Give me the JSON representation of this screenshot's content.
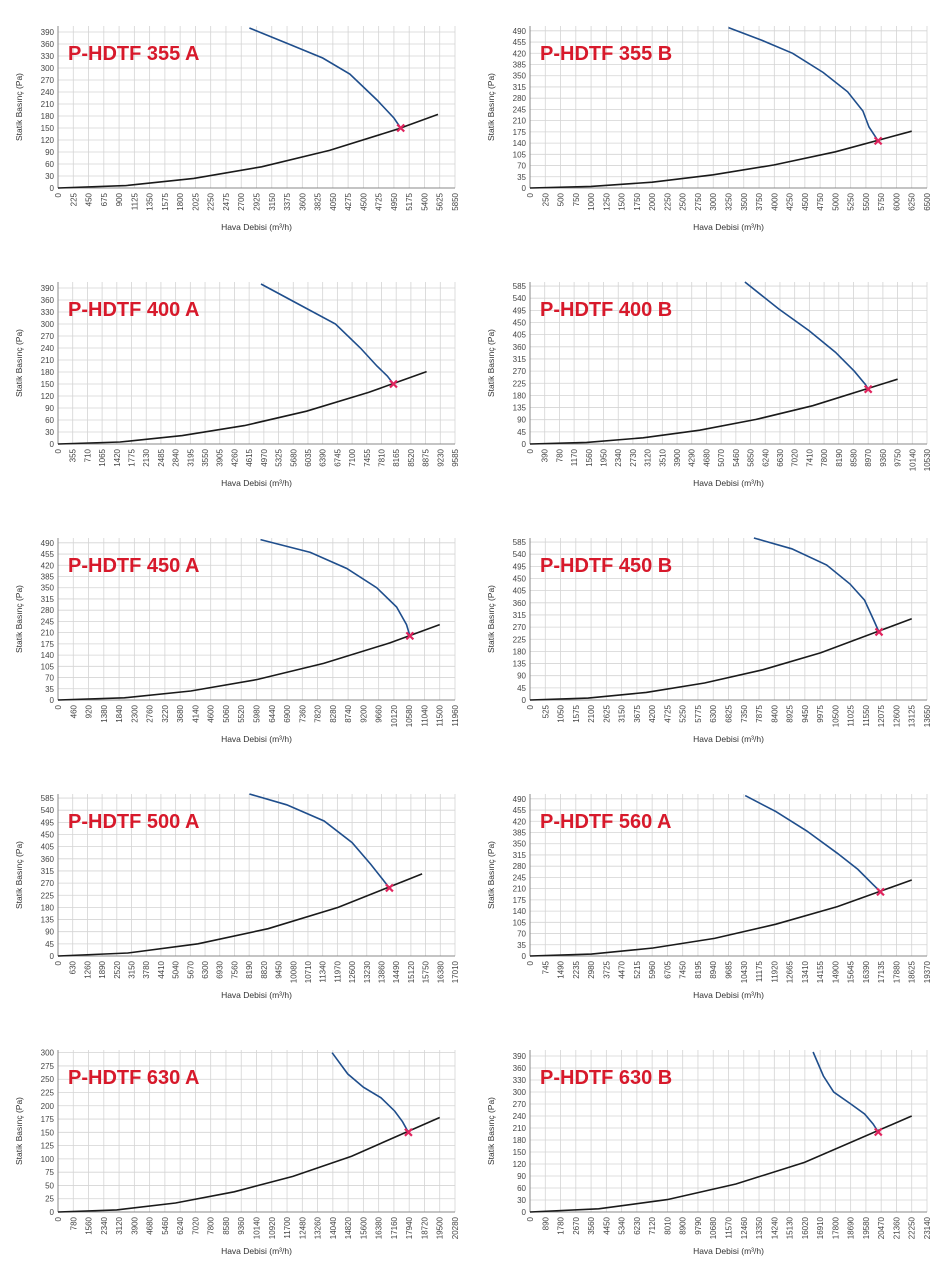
{
  "chart_data": [
    {
      "type": "line",
      "title": "P-HDTF 355 A",
      "xlabel": "Hava Debisi (m³/h)",
      "ylabel": "Statik Basınç (Pa)",
      "grid": true,
      "xlim": [
        0,
        5850
      ],
      "ylim": [
        0,
        405
      ],
      "xticks": [
        0,
        225,
        450,
        675,
        900,
        1125,
        1350,
        1575,
        1800,
        2025,
        2250,
        2475,
        2700,
        2925,
        3150,
        3375,
        3600,
        3825,
        4050,
        4275,
        4500,
        4725,
        4950,
        5175,
        5400,
        5625,
        5850
      ],
      "yticks": [
        0,
        30,
        60,
        90,
        120,
        150,
        180,
        210,
        240,
        270,
        300,
        330,
        360,
        390
      ],
      "series": [
        {
          "color": "#1f4e8c",
          "x": [
            2820,
            3400,
            3900,
            4300,
            4700,
            4950,
            5050
          ],
          "values": [
            400,
            360,
            325,
            285,
            220,
            175,
            150
          ]
        },
        {
          "color": "#1a1a1a",
          "x": [
            0,
            1000,
            2000,
            3000,
            4000,
            5000,
            5600
          ],
          "values": [
            0,
            6,
            24,
            53,
            94,
            147,
            184
          ]
        }
      ],
      "operating_point": {
        "x": 5050,
        "y": 150,
        "color": "#e0245e"
      }
    },
    {
      "type": "line",
      "title": "P-HDTF 355 B",
      "xlabel": "Hava Debisi (m³/h)",
      "ylabel": "Statik Basınç (Pa)",
      "grid": true,
      "xlim": [
        0,
        6500
      ],
      "ylim": [
        0,
        505
      ],
      "xticks": [
        0,
        250,
        500,
        750,
        1000,
        1250,
        1500,
        1750,
        2000,
        2250,
        2500,
        2750,
        3000,
        3250,
        3500,
        3750,
        4000,
        4250,
        4500,
        4750,
        5000,
        5250,
        5500,
        5750,
        6000,
        6250,
        6500
      ],
      "yticks": [
        0,
        35,
        70,
        105,
        140,
        175,
        210,
        245,
        280,
        315,
        350,
        385,
        420,
        455,
        490
      ],
      "series": [
        {
          "color": "#1f4e8c",
          "x": [
            3250,
            3800,
            4300,
            4800,
            5200,
            5450,
            5550,
            5700
          ],
          "values": [
            500,
            460,
            420,
            360,
            300,
            240,
            190,
            147
          ]
        },
        {
          "color": "#1a1a1a",
          "x": [
            0,
            1000,
            2000,
            3000,
            4000,
            5000,
            6250
          ],
          "values": [
            0,
            5,
            18,
            41,
            72,
            113,
            177
          ]
        }
      ],
      "operating_point": {
        "x": 5700,
        "y": 147,
        "color": "#e0245e"
      }
    },
    {
      "type": "line",
      "title": "P-HDTF 400 A",
      "xlabel": "Hava Debisi (m³/h)",
      "ylabel": "Statik Basınç (Pa)",
      "grid": true,
      "xlim": [
        0,
        9585
      ],
      "ylim": [
        0,
        405
      ],
      "xticks": [
        0,
        355,
        710,
        1065,
        1420,
        1775,
        2130,
        2485,
        2840,
        3195,
        3550,
        3905,
        4260,
        4615,
        4970,
        5325,
        5680,
        6035,
        6390,
        6745,
        7100,
        7455,
        7810,
        8165,
        8520,
        8875,
        9230,
        9585
      ],
      "yticks": [
        0,
        30,
        60,
        90,
        120,
        150,
        180,
        210,
        240,
        270,
        300,
        330,
        360,
        390
      ],
      "series": [
        {
          "color": "#1f4e8c",
          "x": [
            4900,
            5800,
            6700,
            7300,
            7700,
            7950,
            8100
          ],
          "values": [
            400,
            350,
            300,
            240,
            195,
            170,
            150
          ]
        },
        {
          "color": "#1a1a1a",
          "x": [
            0,
            1500,
            3000,
            4500,
            6000,
            7500,
            8900
          ],
          "values": [
            0,
            5,
            21,
            46,
            82,
            129,
            181
          ]
        }
      ],
      "operating_point": {
        "x": 8100,
        "y": 150,
        "color": "#e0245e"
      }
    },
    {
      "type": "line",
      "title": "P-HDTF 400 B",
      "xlabel": "Hava Debisi (m³/h)",
      "ylabel": "Statik Basınç (Pa)",
      "grid": true,
      "xlim": [
        0,
        10530
      ],
      "ylim": [
        0,
        600
      ],
      "xticks": [
        0,
        390,
        780,
        1170,
        1560,
        1950,
        2340,
        2730,
        3120,
        3510,
        3900,
        4290,
        4680,
        5070,
        5460,
        5850,
        6240,
        6630,
        7020,
        7410,
        7800,
        8190,
        8580,
        8970,
        9360,
        9750,
        10140,
        10530
      ],
      "yticks": [
        0,
        45,
        90,
        135,
        180,
        225,
        270,
        315,
        360,
        405,
        450,
        495,
        540,
        585
      ],
      "series": [
        {
          "color": "#1f4e8c",
          "x": [
            5700,
            6600,
            7400,
            8100,
            8600,
            8900,
            8970
          ],
          "values": [
            600,
            500,
            420,
            340,
            270,
            220,
            203
          ]
        },
        {
          "color": "#1a1a1a",
          "x": [
            0,
            1500,
            3000,
            4500,
            6000,
            7500,
            9750
          ],
          "values": [
            0,
            6,
            23,
            51,
            91,
            142,
            240
          ]
        }
      ],
      "operating_point": {
        "x": 8970,
        "y": 203,
        "color": "#e0245e"
      }
    },
    {
      "type": "line",
      "title": "P-HDTF 450 A",
      "xlabel": "Hava Debisi (m³/h)",
      "ylabel": "Statik Basınç (Pa)",
      "grid": true,
      "xlim": [
        0,
        11960
      ],
      "ylim": [
        0,
        505
      ],
      "xticks": [
        0,
        460,
        920,
        1380,
        1840,
        2300,
        2760,
        3220,
        3680,
        4140,
        4600,
        5060,
        5520,
        5980,
        6440,
        6900,
        7360,
        7820,
        8280,
        8740,
        9200,
        9660,
        10120,
        10580,
        11040,
        11500,
        11960
      ],
      "yticks": [
        0,
        35,
        70,
        105,
        140,
        175,
        210,
        245,
        280,
        315,
        350,
        385,
        420,
        455,
        490
      ],
      "series": [
        {
          "color": "#1f4e8c",
          "x": [
            6100,
            7600,
            8700,
            9600,
            10200,
            10500,
            10600
          ],
          "values": [
            500,
            460,
            410,
            350,
            290,
            235,
            200
          ]
        },
        {
          "color": "#1a1a1a",
          "x": [
            0,
            2000,
            4000,
            6000,
            8000,
            10000,
            11500
          ],
          "values": [
            0,
            7,
            28,
            64,
            114,
            178,
            235
          ]
        }
      ],
      "operating_point": {
        "x": 10600,
        "y": 200,
        "color": "#e0245e"
      }
    },
    {
      "type": "line",
      "title": "P-HDTF 450 B",
      "xlabel": "Hava Debisi (m³/h)",
      "ylabel": "Statik Basınç (Pa)",
      "grid": true,
      "xlim": [
        0,
        13650
      ],
      "ylim": [
        0,
        600
      ],
      "xticks": [
        0,
        525,
        1050,
        1575,
        2100,
        2625,
        3150,
        3675,
        4200,
        4725,
        5250,
        5775,
        6300,
        6825,
        7350,
        7875,
        8400,
        8925,
        9450,
        9975,
        10500,
        11025,
        11550,
        12075,
        12600,
        13125,
        13650
      ],
      "yticks": [
        0,
        45,
        90,
        135,
        180,
        225,
        270,
        315,
        360,
        405,
        450,
        495,
        540,
        585
      ],
      "series": [
        {
          "color": "#1f4e8c",
          "x": [
            7700,
            9000,
            10200,
            11000,
            11500,
            11800,
            12000
          ],
          "values": [
            600,
            560,
            500,
            430,
            370,
            300,
            252
          ]
        },
        {
          "color": "#1a1a1a",
          "x": [
            0,
            2000,
            4000,
            6000,
            8000,
            10000,
            13125
          ],
          "values": [
            0,
            7,
            28,
            63,
            112,
            175,
            301
          ]
        }
      ],
      "operating_point": {
        "x": 12000,
        "y": 252,
        "color": "#e0245e"
      }
    },
    {
      "type": "line",
      "title": "P-HDTF 500 A",
      "xlabel": "Hava Debisi (m³/h)",
      "ylabel": "Statik Basınç (Pa)",
      "grid": true,
      "xlim": [
        0,
        17010
      ],
      "ylim": [
        0,
        600
      ],
      "xticks": [
        0,
        630,
        1260,
        1890,
        2520,
        3150,
        3780,
        4410,
        5040,
        5670,
        6300,
        6930,
        7560,
        8190,
        8820,
        9450,
        10080,
        10710,
        11340,
        11970,
        12600,
        13230,
        13860,
        14490,
        15120,
        15750,
        16380,
        17010
      ],
      "yticks": [
        0,
        45,
        90,
        135,
        180,
        225,
        270,
        315,
        360,
        405,
        450,
        495,
        540,
        585
      ],
      "series": [
        {
          "color": "#1f4e8c",
          "x": [
            8200,
            9800,
            11400,
            12600,
            13400,
            13900,
            14200
          ],
          "values": [
            600,
            560,
            500,
            420,
            340,
            285,
            252
          ]
        },
        {
          "color": "#1a1a1a",
          "x": [
            0,
            3000,
            6000,
            9000,
            12000,
            15600
          ],
          "values": [
            0,
            11,
            45,
            101,
            180,
            304
          ]
        }
      ],
      "operating_point": {
        "x": 14200,
        "y": 252,
        "color": "#e0245e"
      }
    },
    {
      "type": "line",
      "title": "P-HDTF 560 A",
      "xlabel": "Hava Debisi (m³/h)",
      "ylabel": "Statik Basınç (Pa)",
      "grid": true,
      "xlim": [
        0,
        19370
      ],
      "ylim": [
        0,
        505
      ],
      "xticks": [
        0,
        745,
        1490,
        2235,
        2980,
        3725,
        4470,
        5215,
        5960,
        6705,
        7450,
        8195,
        8940,
        9685,
        10430,
        11175,
        11920,
        12665,
        13410,
        14155,
        14900,
        15645,
        16390,
        17135,
        17880,
        18625,
        19370
      ],
      "yticks": [
        0,
        35,
        70,
        105,
        140,
        175,
        210,
        245,
        280,
        315,
        350,
        385,
        420,
        455,
        490
      ],
      "series": [
        {
          "color": "#1f4e8c",
          "x": [
            10500,
            12000,
            13500,
            15000,
            16000,
            16700,
            17100
          ],
          "values": [
            500,
            450,
            390,
            320,
            270,
            225,
            200
          ]
        },
        {
          "color": "#1a1a1a",
          "x": [
            0,
            3000,
            6000,
            9000,
            12000,
            15000,
            18625
          ],
          "values": [
            0,
            6,
            25,
            55,
            99,
            154,
            237
          ]
        }
      ],
      "operating_point": {
        "x": 17100,
        "y": 200,
        "color": "#e0245e"
      }
    },
    {
      "type": "line",
      "title": "P-HDTF 630 A",
      "xlabel": "Hava Debisi (m³/h)",
      "ylabel": "Statik Basınç (Pa)",
      "grid": true,
      "xlim": [
        0,
        20280
      ],
      "ylim": [
        0,
        305
      ],
      "xticks": [
        0,
        780,
        1560,
        2340,
        3120,
        3900,
        4680,
        5460,
        6240,
        7020,
        7800,
        8580,
        9360,
        10140,
        10920,
        11700,
        12480,
        13260,
        14040,
        14820,
        15600,
        16380,
        17160,
        17940,
        18720,
        19500,
        20280
      ],
      "yticks": [
        0,
        25,
        50,
        75,
        100,
        125,
        150,
        175,
        200,
        225,
        250,
        275,
        300
      ],
      "series": [
        {
          "color": "#1f4e8c",
          "x": [
            14000,
            14800,
            15600,
            16500,
            17200,
            17600,
            17900
          ],
          "values": [
            300,
            260,
            235,
            215,
            190,
            170,
            150
          ]
        },
        {
          "color": "#1a1a1a",
          "x": [
            0,
            3000,
            6000,
            9000,
            12000,
            15000,
            19500
          ],
          "values": [
            0,
            4,
            17,
            38,
            67,
            105,
            178
          ]
        }
      ],
      "operating_point": {
        "x": 17900,
        "y": 150,
        "color": "#e0245e"
      }
    },
    {
      "type": "line",
      "title": "P-HDTF 630 B",
      "xlabel": "Hava Debisi (m³/h)",
      "ylabel": "Statik Basınç (Pa)",
      "grid": true,
      "xlim": [
        0,
        23140
      ],
      "ylim": [
        0,
        405
      ],
      "xticks": [
        0,
        890,
        1780,
        2670,
        3560,
        4450,
        5340,
        6230,
        7120,
        8010,
        8900,
        9790,
        10680,
        11570,
        12460,
        13350,
        14240,
        15130,
        16020,
        16910,
        17800,
        18690,
        19580,
        20470,
        21360,
        22250,
        23140
      ],
      "yticks": [
        0,
        30,
        60,
        90,
        120,
        150,
        180,
        210,
        240,
        270,
        300,
        330,
        360,
        390
      ],
      "series": [
        {
          "color": "#1f4e8c",
          "x": [
            16500,
            17100,
            17700,
            18700,
            19500,
            20000,
            20300
          ],
          "values": [
            400,
            340,
            300,
            270,
            245,
            220,
            200
          ]
        },
        {
          "color": "#1a1a1a",
          "x": [
            0,
            4000,
            8000,
            12000,
            16000,
            22250
          ],
          "values": [
            0,
            8,
            31,
            70,
            124,
            240
          ]
        }
      ],
      "operating_point": {
        "x": 20300,
        "y": 200,
        "color": "#e0245e"
      }
    }
  ]
}
